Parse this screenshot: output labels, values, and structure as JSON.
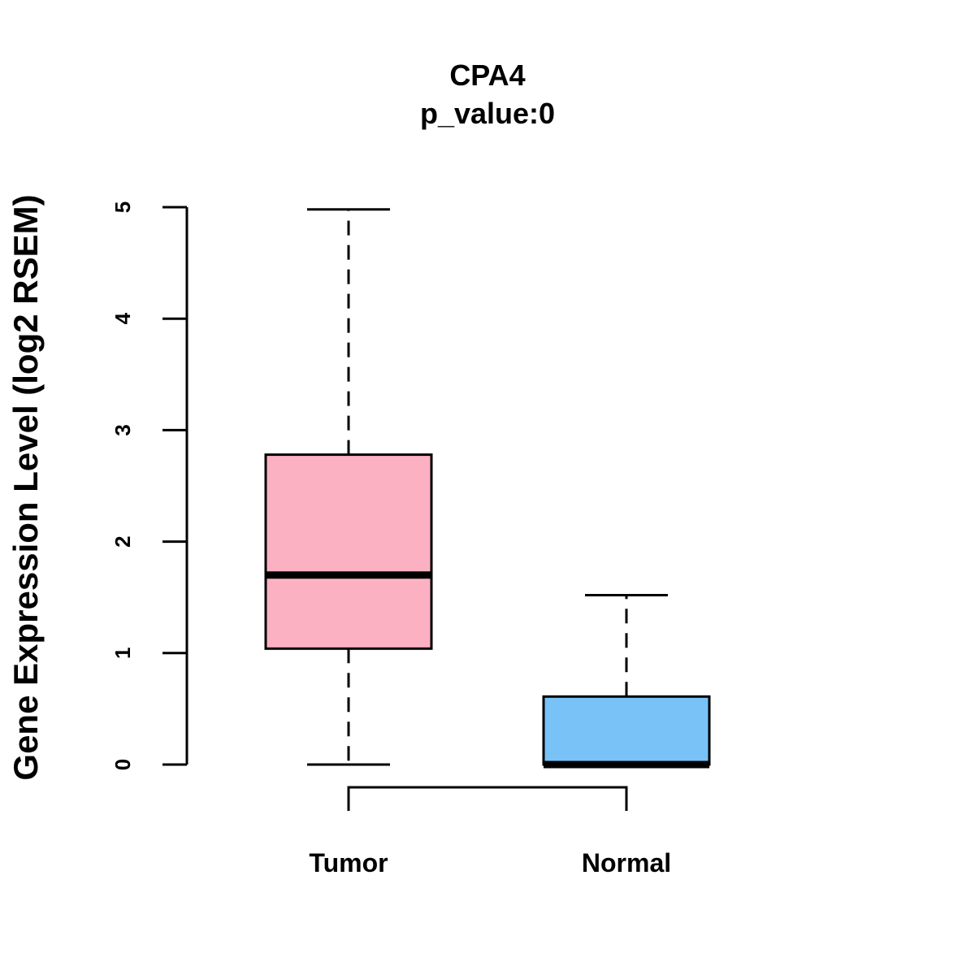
{
  "chart_data": {
    "type": "boxplot",
    "title": "CPA4",
    "subtitle": "p_value:0",
    "xlabel": "",
    "ylabel": "Gene Expression Level (log2 RSEM)",
    "ylim": [
      0,
      5
    ],
    "yticks": [
      0,
      1,
      2,
      3,
      4,
      5
    ],
    "grid": false,
    "legend": "none",
    "categories": [
      "Tumor",
      "Normal"
    ],
    "boxes": [
      {
        "name": "Tumor",
        "whisker_low": 0,
        "q1": 1.04,
        "median": 1.7,
        "q3": 2.78,
        "whisker_high": 4.98,
        "color": "#FCB1C3"
      },
      {
        "name": "Normal",
        "whisker_low": 0,
        "q1": 0,
        "median": 0,
        "q3": 0.61,
        "whisker_high": 1.52,
        "color": "#79C2F8"
      }
    ],
    "bracket": {
      "from": "Tumor",
      "to": "Normal"
    }
  }
}
